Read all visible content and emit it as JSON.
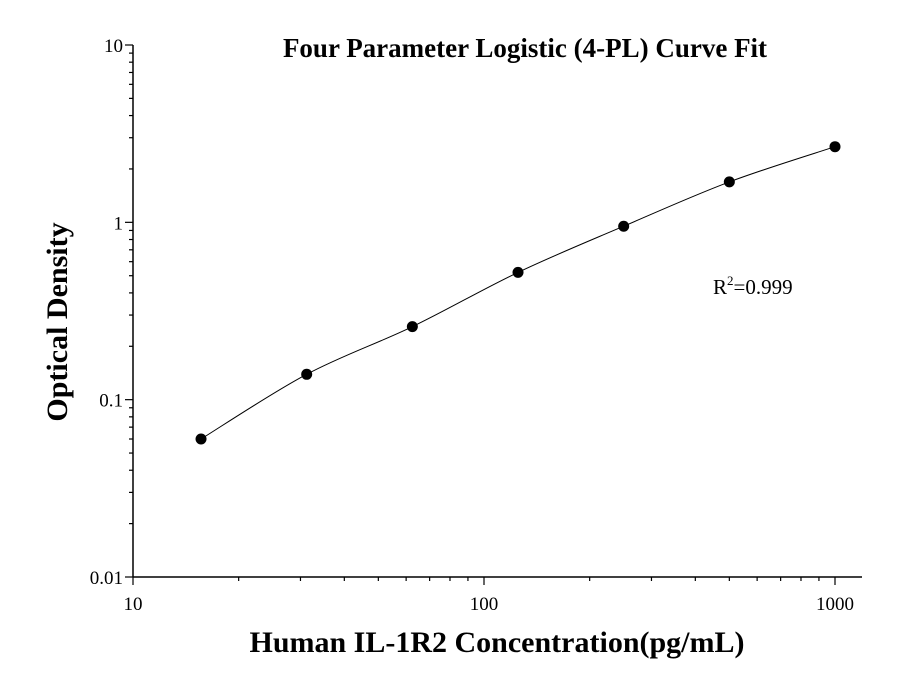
{
  "chart_data": {
    "type": "scatter",
    "title": "Four Parameter Logistic (4-PL) Curve Fit",
    "xlabel": "Human IL-1R2 Concentration(pg/mL)",
    "ylabel": "Optical Density",
    "xscale": "log",
    "yscale": "log",
    "xlim": [
      10,
      1000
    ],
    "ylim": [
      0.01,
      10
    ],
    "x_ticks": [
      "10",
      "100",
      "1000"
    ],
    "y_ticks": [
      "0.01",
      "0.1",
      "1",
      "10"
    ],
    "grid": false,
    "series": [
      {
        "x": [
          15.625,
          31.25,
          62.5,
          125,
          250,
          500,
          1000
        ],
        "y": [
          0.06,
          0.139,
          0.258,
          0.522,
          0.951,
          1.69,
          2.67
        ],
        "marker": "filled-circle",
        "fit": "4-PL curve",
        "color": "#000000"
      }
    ],
    "annotation": {
      "prefix": "R",
      "superscript": "2",
      "suffix": "=0.999"
    }
  }
}
